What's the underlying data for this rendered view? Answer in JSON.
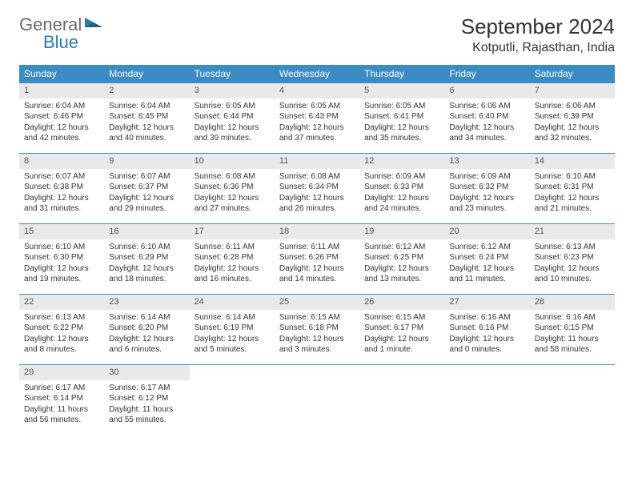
{
  "logo": {
    "general": "General",
    "blue": "Blue"
  },
  "header": {
    "month_title": "September 2024",
    "location": "Kotputli, Rajasthan, India"
  },
  "calendar": {
    "type": "table",
    "header_bg": "#3b8bc4",
    "header_fg": "#ffffff",
    "daynum_bg": "#e9e9e9",
    "row_border_color": "#3b8bc4",
    "text_color": "#333333",
    "fontsize_header": 12,
    "fontsize_daynum": 11,
    "fontsize_body": 10,
    "columns": [
      "Sunday",
      "Monday",
      "Tuesday",
      "Wednesday",
      "Thursday",
      "Friday",
      "Saturday"
    ],
    "weeks": [
      [
        {
          "n": "1",
          "sr": "Sunrise: 6:04 AM",
          "ss": "Sunset: 6:46 PM",
          "dl": "Daylight: 12 hours and 42 minutes."
        },
        {
          "n": "2",
          "sr": "Sunrise: 6:04 AM",
          "ss": "Sunset: 6:45 PM",
          "dl": "Daylight: 12 hours and 40 minutes."
        },
        {
          "n": "3",
          "sr": "Sunrise: 6:05 AM",
          "ss": "Sunset: 6:44 PM",
          "dl": "Daylight: 12 hours and 39 minutes."
        },
        {
          "n": "4",
          "sr": "Sunrise: 6:05 AM",
          "ss": "Sunset: 6:43 PM",
          "dl": "Daylight: 12 hours and 37 minutes."
        },
        {
          "n": "5",
          "sr": "Sunrise: 6:05 AM",
          "ss": "Sunset: 6:41 PM",
          "dl": "Daylight: 12 hours and 35 minutes."
        },
        {
          "n": "6",
          "sr": "Sunrise: 6:06 AM",
          "ss": "Sunset: 6:40 PM",
          "dl": "Daylight: 12 hours and 34 minutes."
        },
        {
          "n": "7",
          "sr": "Sunrise: 6:06 AM",
          "ss": "Sunset: 6:39 PM",
          "dl": "Daylight: 12 hours and 32 minutes."
        }
      ],
      [
        {
          "n": "8",
          "sr": "Sunrise: 6:07 AM",
          "ss": "Sunset: 6:38 PM",
          "dl": "Daylight: 12 hours and 31 minutes."
        },
        {
          "n": "9",
          "sr": "Sunrise: 6:07 AM",
          "ss": "Sunset: 6:37 PM",
          "dl": "Daylight: 12 hours and 29 minutes."
        },
        {
          "n": "10",
          "sr": "Sunrise: 6:08 AM",
          "ss": "Sunset: 6:36 PM",
          "dl": "Daylight: 12 hours and 27 minutes."
        },
        {
          "n": "11",
          "sr": "Sunrise: 6:08 AM",
          "ss": "Sunset: 6:34 PM",
          "dl": "Daylight: 12 hours and 26 minutes."
        },
        {
          "n": "12",
          "sr": "Sunrise: 6:09 AM",
          "ss": "Sunset: 6:33 PM",
          "dl": "Daylight: 12 hours and 24 minutes."
        },
        {
          "n": "13",
          "sr": "Sunrise: 6:09 AM",
          "ss": "Sunset: 6:32 PM",
          "dl": "Daylight: 12 hours and 23 minutes."
        },
        {
          "n": "14",
          "sr": "Sunrise: 6:10 AM",
          "ss": "Sunset: 6:31 PM",
          "dl": "Daylight: 12 hours and 21 minutes."
        }
      ],
      [
        {
          "n": "15",
          "sr": "Sunrise: 6:10 AM",
          "ss": "Sunset: 6:30 PM",
          "dl": "Daylight: 12 hours and 19 minutes."
        },
        {
          "n": "16",
          "sr": "Sunrise: 6:10 AM",
          "ss": "Sunset: 6:29 PM",
          "dl": "Daylight: 12 hours and 18 minutes."
        },
        {
          "n": "17",
          "sr": "Sunrise: 6:11 AM",
          "ss": "Sunset: 6:28 PM",
          "dl": "Daylight: 12 hours and 16 minutes."
        },
        {
          "n": "18",
          "sr": "Sunrise: 6:11 AM",
          "ss": "Sunset: 6:26 PM",
          "dl": "Daylight: 12 hours and 14 minutes."
        },
        {
          "n": "19",
          "sr": "Sunrise: 6:12 AM",
          "ss": "Sunset: 6:25 PM",
          "dl": "Daylight: 12 hours and 13 minutes."
        },
        {
          "n": "20",
          "sr": "Sunrise: 6:12 AM",
          "ss": "Sunset: 6:24 PM",
          "dl": "Daylight: 12 hours and 11 minutes."
        },
        {
          "n": "21",
          "sr": "Sunrise: 6:13 AM",
          "ss": "Sunset: 6:23 PM",
          "dl": "Daylight: 12 hours and 10 minutes."
        }
      ],
      [
        {
          "n": "22",
          "sr": "Sunrise: 6:13 AM",
          "ss": "Sunset: 6:22 PM",
          "dl": "Daylight: 12 hours and 8 minutes."
        },
        {
          "n": "23",
          "sr": "Sunrise: 6:14 AM",
          "ss": "Sunset: 6:20 PM",
          "dl": "Daylight: 12 hours and 6 minutes."
        },
        {
          "n": "24",
          "sr": "Sunrise: 6:14 AM",
          "ss": "Sunset: 6:19 PM",
          "dl": "Daylight: 12 hours and 5 minutes."
        },
        {
          "n": "25",
          "sr": "Sunrise: 6:15 AM",
          "ss": "Sunset: 6:18 PM",
          "dl": "Daylight: 12 hours and 3 minutes."
        },
        {
          "n": "26",
          "sr": "Sunrise: 6:15 AM",
          "ss": "Sunset: 6:17 PM",
          "dl": "Daylight: 12 hours and 1 minute."
        },
        {
          "n": "27",
          "sr": "Sunrise: 6:16 AM",
          "ss": "Sunset: 6:16 PM",
          "dl": "Daylight: 12 hours and 0 minutes."
        },
        {
          "n": "28",
          "sr": "Sunrise: 6:16 AM",
          "ss": "Sunset: 6:15 PM",
          "dl": "Daylight: 11 hours and 58 minutes."
        }
      ],
      [
        {
          "n": "29",
          "sr": "Sunrise: 6:17 AM",
          "ss": "Sunset: 6:14 PM",
          "dl": "Daylight: 11 hours and 56 minutes."
        },
        {
          "n": "30",
          "sr": "Sunrise: 6:17 AM",
          "ss": "Sunset: 6:12 PM",
          "dl": "Daylight: 11 hours and 55 minutes."
        },
        {
          "empty": true
        },
        {
          "empty": true
        },
        {
          "empty": true
        },
        {
          "empty": true
        },
        {
          "empty": true
        }
      ]
    ]
  }
}
